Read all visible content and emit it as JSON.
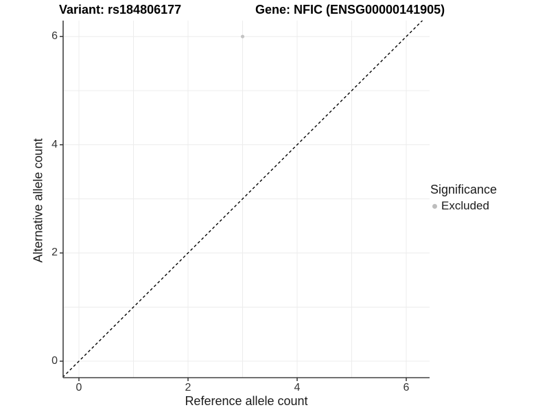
{
  "chart_data": {
    "type": "scatter",
    "title_left": "Variant: rs184806177",
    "title_right": "Gene: NFIC (ENSG00000141905)",
    "xlabel": "Reference allele count",
    "ylabel": "Alternative allele count",
    "xlim": [
      -0.3,
      6.45
    ],
    "ylim": [
      -0.3,
      6.3
    ],
    "x_ticks": [
      0,
      2,
      4,
      6
    ],
    "y_ticks": [
      0,
      2,
      4,
      6
    ],
    "gridlines_x": [
      0,
      1,
      2,
      3,
      4,
      5,
      6
    ],
    "gridlines_y": [
      0,
      1,
      2,
      3,
      4,
      5,
      6
    ],
    "grid": true,
    "series": [
      {
        "name": "Excluded",
        "points": [
          {
            "x": 3,
            "y": 6
          }
        ]
      }
    ],
    "identity_line": {
      "equation": "y = x",
      "style": "dashed",
      "color": "#000000"
    },
    "legend": {
      "title": "Significance",
      "position": "right",
      "items": [
        {
          "label": "Excluded",
          "color": "#c0c0c0"
        }
      ]
    },
    "colors": {
      "point": "#c4c4c4",
      "legend_key": "#bdbdbd",
      "gridline": "#ececec",
      "axis_line": "#404040",
      "tick_mark": "#333333",
      "dashed_line": "#000000"
    }
  }
}
